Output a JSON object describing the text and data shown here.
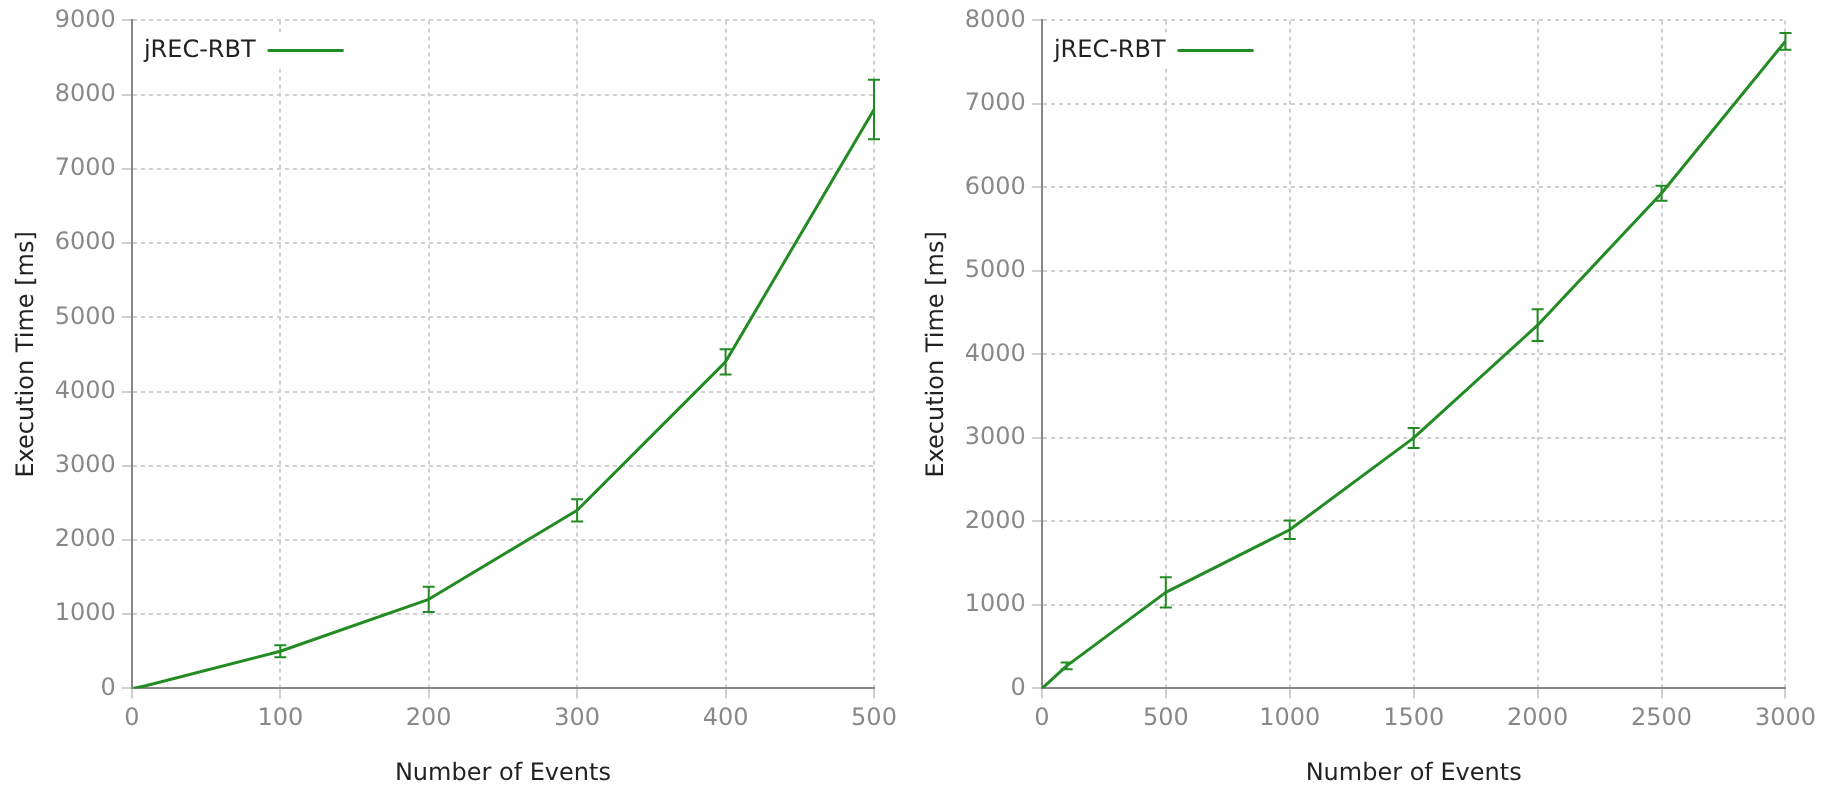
{
  "chart_data": [
    {
      "type": "line",
      "xlabel": "Number of Events",
      "ylabel": "Execution Time [ms]",
      "x": [
        1,
        10,
        100,
        200,
        300,
        400,
        500
      ],
      "xlim": [
        0,
        500
      ],
      "xticks": [
        0,
        100,
        200,
        300,
        400,
        500
      ],
      "ylim": [
        0,
        9000
      ],
      "yticks": [
        0,
        1000,
        2000,
        3000,
        4000,
        5000,
        6000,
        7000,
        8000,
        9000
      ],
      "grid": true,
      "legend": "top left",
      "marker": "none",
      "series": [
        {
          "name": "jREC-RBT",
          "color": "#238b23",
          "values": [
            0,
            40,
            500,
            1200,
            2400,
            4400,
            7800
          ],
          "errors": [
            null,
            null,
            80,
            170,
            150,
            170,
            [
              7400,
              8200
            ]
          ]
        }
      ]
    },
    {
      "type": "line",
      "xlabel": "Number of Events",
      "ylabel": "Execution Time [ms]",
      "x": [
        1,
        100,
        500,
        1000,
        1500,
        2000,
        2500,
        3000
      ],
      "xlim": [
        0,
        3000
      ],
      "xticks": [
        0,
        500,
        1000,
        1500,
        2000,
        2500,
        3000
      ],
      "ylim": [
        0,
        8000
      ],
      "yticks": [
        0,
        1000,
        2000,
        3000,
        4000,
        5000,
        6000,
        7000,
        8000
      ],
      "grid": true,
      "legend": "top left",
      "marker": "none",
      "series": [
        {
          "name": "jREC-RBT",
          "color": "#238b23",
          "values": [
            0,
            270,
            1150,
            1900,
            3000,
            4350,
            5930,
            7750
          ],
          "errors": [
            null,
            40,
            180,
            110,
            120,
            190,
            90,
            100
          ]
        }
      ]
    }
  ]
}
